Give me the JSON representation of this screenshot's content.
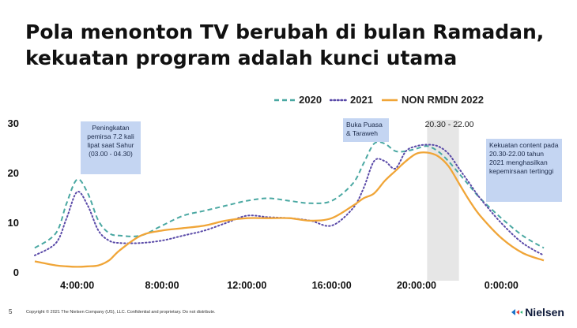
{
  "slide": {
    "title_line1": "Pola menonton TV berubah di bulan Ramadan,",
    "title_line2": "kekuatan program adalah kunci utama",
    "page_number": "5",
    "copyright": "Copyright © 2021 The Nielsen Company (US), LLC. Confidential and proprietary. Do not distribute.",
    "brand": "Nielsen"
  },
  "annotations": {
    "sahur": "Peningkatan pemirsa 7.2 kali lipat saat Sahur (03.00 - 04.30)",
    "buka": "Buka Puasa & Taraweh",
    "highlight_label": "20.30 - 22.00",
    "prime": "Kekuatan content pada 20.30-22.00 tahun 2021 menghasilkan kepemirsaan tertinggi"
  },
  "colors": {
    "2020": "#4aa8a2",
    "2021": "#5a4aa8",
    "NON RMDN 2022": "#f0a537",
    "highlight": "#e6e6e6",
    "annotation_box": "#c4d5f2"
  },
  "chart_data": {
    "type": "line",
    "title": "",
    "xlabel": "",
    "ylabel": "",
    "x_unit": "hour of day (02:00 to 02:00 next day)",
    "xticks": [
      "4:00:00",
      "8:00:00",
      "12:00:00",
      "16:00:00",
      "20:00:00",
      "0:00:00"
    ],
    "yticks": [
      "0",
      "10",
      "20",
      "30"
    ],
    "ylim": [
      0,
      30
    ],
    "xlim": [
      2,
      26
    ],
    "legend_position": "top-right",
    "highlight_band": [
      20.5,
      22.0
    ],
    "x": [
      2.0,
      3.0,
      3.5,
      4.0,
      4.5,
      5.0,
      5.5,
      6.0,
      7.0,
      8.0,
      9.0,
      10.0,
      11.0,
      12.0,
      13.0,
      14.0,
      15.0,
      16.0,
      17.0,
      17.5,
      18.0,
      18.5,
      19.0,
      19.5,
      20.0,
      20.5,
      21.0,
      21.5,
      22.0,
      22.5,
      23.0,
      24.0,
      25.0,
      26.0
    ],
    "series": [
      {
        "name": "2020",
        "style": "dashed",
        "values": [
          5.0,
          8.0,
          14.0,
          18.8,
          16.0,
          10.5,
          8.0,
          7.5,
          7.5,
          9.5,
          11.5,
          12.5,
          13.5,
          14.5,
          15.0,
          14.5,
          14.0,
          14.5,
          18.0,
          22.0,
          26.0,
          26.0,
          24.5,
          24.5,
          25.0,
          25.5,
          24.5,
          22.5,
          20.0,
          17.5,
          15.0,
          11.0,
          7.5,
          5.0
        ]
      },
      {
        "name": "2021",
        "style": "dotted",
        "values": [
          3.5,
          6.0,
          11.0,
          16.3,
          13.5,
          8.5,
          6.5,
          6.0,
          6.0,
          6.5,
          7.5,
          8.5,
          10.0,
          11.5,
          11.2,
          11.0,
          10.5,
          9.5,
          13.0,
          17.0,
          22.5,
          22.5,
          21.0,
          24.5,
          25.5,
          25.8,
          25.5,
          24.0,
          21.0,
          18.0,
          15.0,
          10.0,
          6.0,
          3.5
        ]
      },
      {
        "name": "NON RMDN 2022",
        "style": "solid",
        "values": [
          2.3,
          1.5,
          1.3,
          1.2,
          1.3,
          1.5,
          2.5,
          4.5,
          7.5,
          8.5,
          9.0,
          9.5,
          10.5,
          11.0,
          11.0,
          11.0,
          10.5,
          11.0,
          13.5,
          15.0,
          16.0,
          18.5,
          20.5,
          22.5,
          24.0,
          24.2,
          23.5,
          21.5,
          18.0,
          14.5,
          11.5,
          7.0,
          4.0,
          2.5
        ]
      }
    ]
  }
}
